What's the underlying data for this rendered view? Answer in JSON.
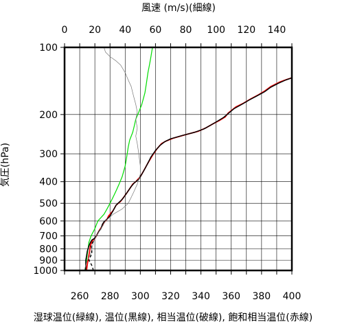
{
  "chart_data": {
    "type": "line",
    "top_xlabel": "風速 (m/s)(細線)",
    "bottom_xlabel": "湿球温位(緑線), 温位(黒線), 相当温位(破線), 飽和相当温位(赤線)",
    "ylabel": "気圧(hPa)",
    "y_scale": "log",
    "ylim": [
      1000,
      100
    ],
    "bottom_xlim": [
      250,
      400
    ],
    "top_xlim": [
      0,
      150
    ],
    "bottom_ticks": [
      "260",
      "280",
      "300",
      "320",
      "340",
      "360",
      "380",
      "400"
    ],
    "top_ticks": [
      "0",
      "20",
      "40",
      "60",
      "80",
      "100",
      "120",
      "140"
    ],
    "y_ticks": [
      "100",
      "200",
      "300",
      "400",
      "500",
      "600",
      "700",
      "800",
      "900",
      "1000"
    ],
    "grid": true,
    "colors": {
      "wet_bulb_potential_temperature": "#00dd00",
      "potential_temperature": "#000000",
      "equivalent_potential_temperature": "#000000",
      "saturated_equivalent_potential_temperature": "#ff0000",
      "wind_speed": "#777777"
    },
    "series": [
      {
        "key": "wet_bulb_potential_temperature",
        "axis": "bottom",
        "style": "solid-thin",
        "points": [
          [
            263.5,
            1000
          ],
          [
            264,
            950
          ],
          [
            264.5,
            900
          ],
          [
            265,
            850
          ],
          [
            265.5,
            800
          ],
          [
            266,
            750
          ],
          [
            267.5,
            700
          ],
          [
            270,
            650
          ],
          [
            272,
            600
          ],
          [
            276,
            560
          ],
          [
            278,
            530
          ],
          [
            280,
            500
          ],
          [
            282,
            470
          ],
          [
            284,
            440
          ],
          [
            286,
            410
          ],
          [
            288,
            380
          ],
          [
            290,
            340
          ],
          [
            291,
            310
          ],
          [
            292,
            280
          ],
          [
            293,
            260
          ],
          [
            295,
            240
          ],
          [
            296,
            225
          ],
          [
            297,
            210
          ],
          [
            299,
            195
          ],
          [
            301,
            180
          ],
          [
            303,
            160
          ],
          [
            304,
            145
          ],
          [
            305,
            130
          ],
          [
            306,
            120
          ],
          [
            307,
            110
          ],
          [
            308,
            100
          ]
        ]
      },
      {
        "key": "saturated_equivalent_potential_temperature",
        "axis": "bottom",
        "style": "solid",
        "points": [
          [
            264.5,
            1000
          ],
          [
            265,
            940
          ],
          [
            265.5,
            900
          ],
          [
            266,
            860
          ],
          [
            266.5,
            820
          ],
          [
            267,
            780
          ],
          [
            268,
            740
          ],
          [
            270,
            720
          ],
          [
            271,
            700
          ],
          [
            273,
            660
          ],
          [
            275,
            630
          ],
          [
            276,
            610
          ],
          [
            278,
            590
          ],
          [
            279,
            570
          ],
          [
            282,
            540
          ],
          [
            284,
            510
          ],
          [
            287,
            490
          ],
          [
            289,
            470
          ],
          [
            291,
            450
          ],
          [
            293,
            430
          ],
          [
            295,
            410
          ],
          [
            297,
            400
          ],
          [
            300,
            380
          ],
          [
            302,
            360
          ],
          [
            305,
            330
          ],
          [
            308,
            305
          ],
          [
            311,
            285
          ],
          [
            314,
            270
          ],
          [
            317,
            263
          ],
          [
            322,
            255
          ],
          [
            330,
            246
          ],
          [
            338,
            238
          ],
          [
            343,
            230
          ],
          [
            348,
            220
          ],
          [
            352,
            213
          ],
          [
            356,
            205
          ],
          [
            358,
            197
          ],
          [
            363,
            185
          ],
          [
            368,
            178
          ],
          [
            373,
            170
          ],
          [
            378,
            163
          ],
          [
            382,
            157
          ],
          [
            386,
            150
          ],
          [
            392,
            143
          ],
          [
            397,
            139
          ],
          [
            400,
            137
          ]
        ]
      },
      {
        "key": "potential_temperature",
        "axis": "bottom",
        "style": "solid-thick",
        "points": [
          [
            264,
            1000
          ],
          [
            264,
            950
          ],
          [
            264,
            900
          ],
          [
            264.5,
            860
          ],
          [
            265,
            820
          ],
          [
            266,
            780
          ],
          [
            267,
            750
          ],
          [
            268,
            730
          ],
          [
            269.5,
            720
          ],
          [
            271,
            700
          ],
          [
            272.5,
            670
          ],
          [
            274,
            650
          ],
          [
            275,
            620
          ],
          [
            276,
            605
          ],
          [
            278,
            590
          ],
          [
            280,
            570
          ],
          [
            282,
            540
          ],
          [
            284,
            510
          ],
          [
            286,
            495
          ],
          [
            288,
            480
          ],
          [
            290,
            460
          ],
          [
            292,
            440
          ],
          [
            294,
            420
          ],
          [
            296,
            405
          ],
          [
            299,
            390
          ],
          [
            301,
            370
          ],
          [
            303,
            350
          ],
          [
            305,
            330
          ],
          [
            307,
            310
          ],
          [
            310,
            290
          ],
          [
            313,
            275
          ],
          [
            316,
            265
          ],
          [
            320,
            257
          ],
          [
            328,
            248
          ],
          [
            336,
            240
          ],
          [
            342,
            232
          ],
          [
            347,
            222
          ],
          [
            351,
            214
          ],
          [
            355,
            206
          ],
          [
            358,
            198
          ],
          [
            362,
            188
          ],
          [
            367,
            180
          ],
          [
            372,
            172
          ],
          [
            377,
            165
          ],
          [
            382,
            158
          ],
          [
            386,
            151
          ],
          [
            391,
            145
          ],
          [
            396,
            140
          ],
          [
            400,
            137
          ]
        ]
      },
      {
        "key": "equivalent_potential_temperature",
        "axis": "bottom",
        "style": "dashed",
        "points": [
          [
            269,
            1000
          ],
          [
            268.5,
            970
          ],
          [
            268,
            950
          ],
          [
            267,
            920
          ],
          [
            266,
            900
          ],
          [
            267,
            870
          ],
          [
            268,
            840
          ],
          [
            268,
            800
          ],
          [
            267.5,
            780
          ],
          [
            268,
            760
          ],
          [
            269,
            740
          ],
          [
            270,
            720
          ]
        ]
      },
      {
        "key": "wind_speed",
        "axis": "top",
        "style": "thin",
        "points": [
          [
            13,
            1000
          ],
          [
            14,
            950
          ],
          [
            15,
            900
          ],
          [
            17,
            850
          ],
          [
            18,
            800
          ],
          [
            19,
            750
          ],
          [
            21,
            700
          ],
          [
            24,
            650
          ],
          [
            27,
            600
          ],
          [
            32,
            560
          ],
          [
            38,
            530
          ],
          [
            42,
            500
          ],
          [
            44,
            470
          ],
          [
            46,
            440
          ],
          [
            48,
            410
          ],
          [
            49,
            390
          ],
          [
            50,
            370
          ],
          [
            50,
            340
          ],
          [
            49,
            300
          ],
          [
            48,
            270
          ],
          [
            47,
            250
          ],
          [
            48,
            230
          ],
          [
            47,
            210
          ],
          [
            48,
            195
          ],
          [
            47,
            180
          ],
          [
            46,
            170
          ],
          [
            45,
            160
          ],
          [
            44,
            150
          ],
          [
            42,
            140
          ],
          [
            40,
            130
          ],
          [
            37,
            120
          ],
          [
            34,
            115
          ],
          [
            30,
            110
          ],
          [
            27,
            105
          ],
          [
            26,
            100
          ]
        ]
      }
    ]
  }
}
